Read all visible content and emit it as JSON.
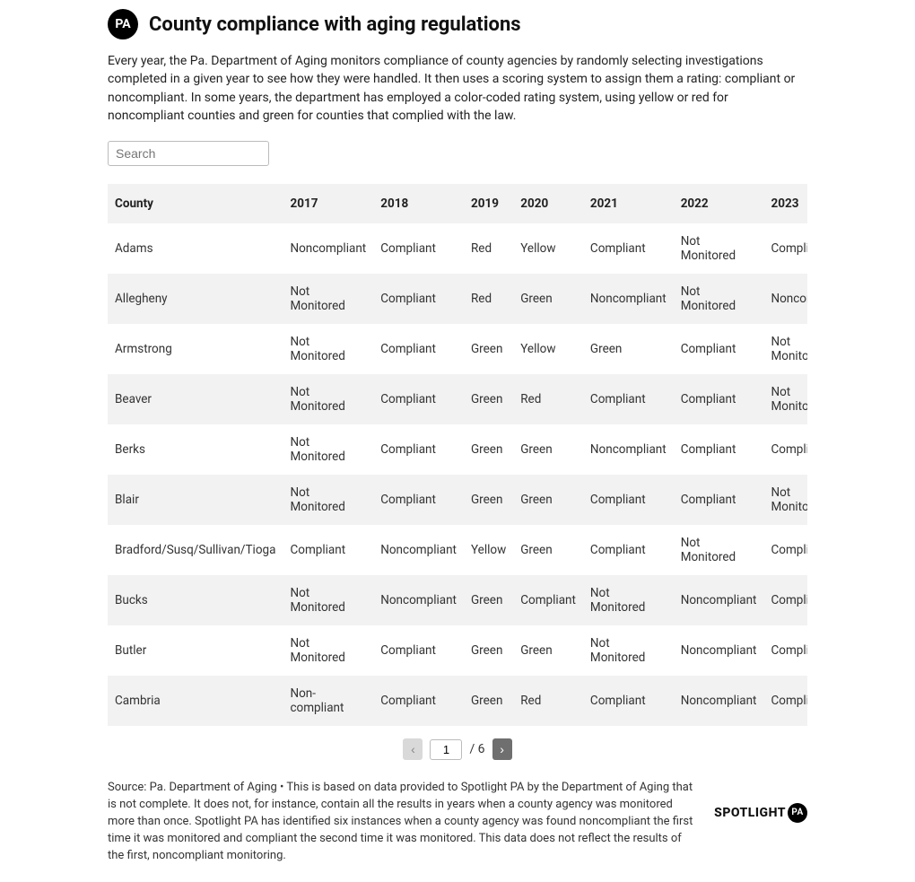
{
  "header": {
    "badge_text": "PA",
    "title": "County compliance with aging regulations"
  },
  "intro": "Every year, the Pa. Department of Aging monitors compliance of county agencies by randomly selecting investigations completed in a given year to see how they were handled. It then uses a scoring system to assign them a rating: compliant or noncompliant. In some years, the department has employed a color-coded rating system, using yellow or red for noncompliant counties and green for counties that complied with the law.",
  "search": {
    "placeholder": "Search",
    "value": ""
  },
  "table": {
    "columns": [
      "County",
      "2017",
      "2018",
      "2019",
      "2020",
      "2021",
      "2022",
      "2023"
    ],
    "rows": [
      [
        "Adams",
        "Noncompliant",
        "Compliant",
        "Red",
        "Yellow",
        "Compliant",
        "Not Monitored",
        "Compliant"
      ],
      [
        "Allegheny",
        "Not Monitored",
        "Compliant",
        "Red",
        "Green",
        "Noncompliant",
        "Not Monitored",
        "Noncompliant"
      ],
      [
        "Armstrong",
        "Not Monitored",
        "Compliant",
        "Green",
        "Yellow",
        "Green",
        "Compliant",
        "Not Monitored"
      ],
      [
        "Beaver",
        "Not Monitored",
        "Compliant",
        "Green",
        "Red",
        "Compliant",
        "Compliant",
        "Not Monitored"
      ],
      [
        "Berks",
        "Not Monitored",
        "Compliant",
        "Green",
        "Green",
        "Noncompliant",
        "Compliant",
        "Compliant"
      ],
      [
        "Blair",
        "Not Monitored",
        "Compliant",
        "Green",
        "Green",
        "Compliant",
        "Compliant",
        "Not Monitored"
      ],
      [
        "Bradford/Susq/Sullivan/Tioga",
        "Compliant",
        "Noncompliant",
        "Yellow",
        "Green",
        "Compliant",
        "Not Monitored",
        "Compliant"
      ],
      [
        "Bucks",
        "Not Monitored",
        "Noncompliant",
        "Green",
        "Compliant",
        "Not Monitored",
        "Noncompliant",
        "Compliant"
      ],
      [
        "Butler",
        "Not Monitored",
        "Compliant",
        "Green",
        "Green",
        "Not Monitored",
        "Noncompliant",
        "Compliant"
      ],
      [
        "Cambria",
        "Non-compliant",
        "Compliant",
        "Green",
        "Red",
        "Compliant",
        "Noncompliant",
        "Compliant"
      ]
    ],
    "header_bg": "#f2f2f2",
    "row_bg_even": "#f2f2f2",
    "row_bg_odd": "#ffffff",
    "font_size": 13.5,
    "text_color": "#333333"
  },
  "pager": {
    "prev_label": "‹",
    "next_label": "›",
    "current_page": "1",
    "total_label": "/ 6"
  },
  "footer": {
    "text": "Source: Pa. Department of Aging • This is based on data provided to Spotlight PA by the Department of Aging that is not complete. It does not, for instance, contain all the results in years when a county agency was monitored more than once. Spotlight PA has identified six instances when a county agency was found noncompliant the first time it was monitored and compliant the second time it was monitored. This data does not reflect the results of the first, noncompliant monitoring.",
    "logo_text": "SPOTLIGHT",
    "logo_badge": "PA"
  },
  "colors": {
    "page_bg": "#ffffff",
    "text": "#222222",
    "muted": "#6f6f6f",
    "border": "#bbbbbb"
  }
}
